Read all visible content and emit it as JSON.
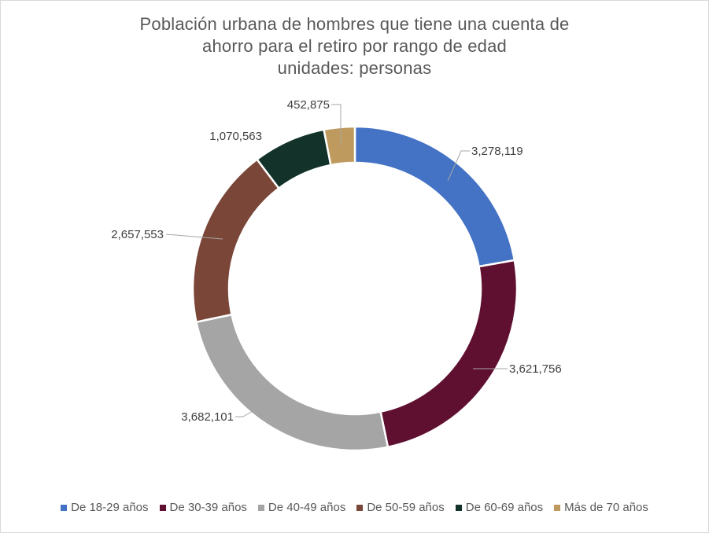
{
  "chart_data": {
    "type": "pie",
    "variant": "doughnut",
    "title_lines": [
      "Población urbana de hombres que tiene una cuenta de",
      "ahorro para el retiro por rango de edad",
      "unidades: personas"
    ],
    "categories": [
      "De 18-29 años",
      "De 30-39 años",
      "De 40-49 años",
      "De 50-59 años",
      "De 60-69 años",
      "Más de 70 años"
    ],
    "values": [
      3278119,
      3621756,
      3682101,
      2657553,
      1070563,
      452875
    ],
    "data_labels": [
      "3,278,119",
      "3,621,756",
      "3,682,101",
      "2,657,553",
      "1,070,563",
      "452,875"
    ],
    "colors": [
      "#4472c4",
      "#5f0f30",
      "#a5a5a5",
      "#7a4638",
      "#13322a",
      "#bf9a5f"
    ],
    "start_angle": "12 o'clock, clockwise",
    "legend_position": "bottom"
  }
}
